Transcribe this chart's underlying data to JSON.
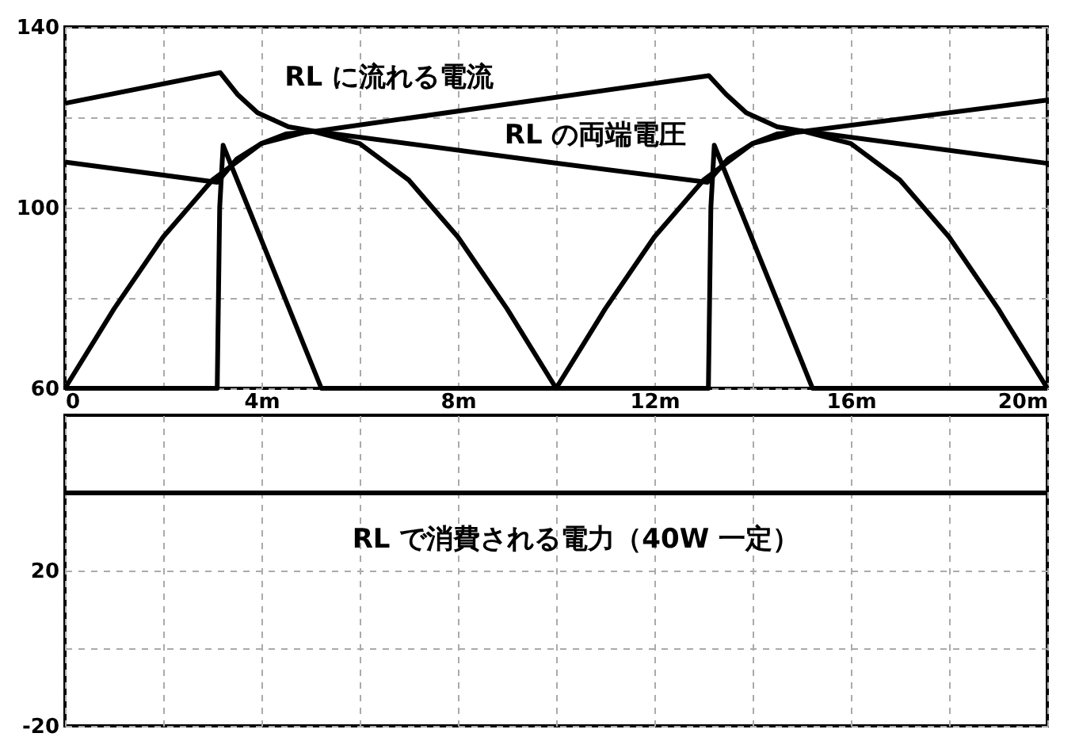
{
  "chart_data": [
    {
      "type": "line",
      "xlim": [
        0,
        20
      ],
      "xticks": [
        0,
        {
          "value": 2,
          "label": null
        },
        {
          "value": 4,
          "label": "4m"
        },
        {
          "value": 6,
          "label": null
        },
        {
          "value": 8,
          "label": "8m"
        },
        {
          "value": 10,
          "label": null
        },
        {
          "value": 12,
          "label": "12m"
        },
        {
          "value": 14,
          "label": null
        },
        {
          "value": 16,
          "label": "16m"
        },
        {
          "value": 18,
          "label": null
        },
        {
          "value": 20,
          "label": "20m"
        }
      ],
      "ylim": [
        60,
        140
      ],
      "yticks": [
        60,
        {
          "value": 80,
          "label": null
        },
        100,
        {
          "value": 120,
          "label": null
        },
        140
      ],
      "grid": true,
      "line_style": "solid",
      "marker": "none",
      "annotations": [
        "RL に流れる電流",
        "RL の両端電圧"
      ],
      "series": [
        {
          "color": "#000000",
          "x": [
            0,
            1,
            2,
            3,
            4,
            5,
            6,
            7,
            8,
            9,
            10,
            11,
            12,
            13,
            14,
            15,
            16,
            17,
            18,
            19,
            20
          ],
          "values": [
            60,
            77.6,
            93.5,
            106.1,
            114.2,
            117,
            114.2,
            106.1,
            93.5,
            77.6,
            60,
            77.6,
            93.5,
            106.1,
            114.2,
            117,
            114.2,
            106.1,
            93.5,
            77.6,
            60
          ]
        },
        {
          "color": "#000000",
          "x": [
            0,
            3.1,
            3.15,
            3.22,
            5.22,
            13.1,
            13.15,
            13.22,
            15.22,
            20
          ],
          "values": [
            60,
            60,
            100,
            113.8,
            60,
            60,
            100,
            113.8,
            60,
            60
          ]
        },
        {
          "color": "#000000",
          "x": [
            0,
            3.16,
            3.51,
            3.92,
            4.55,
            5.09,
            13.11,
            13.46,
            13.87,
            14.5,
            15.04,
            20
          ],
          "values": [
            123.1,
            129.9,
            125.1,
            121.0,
            117.9,
            116.9,
            129.2,
            125.1,
            121.0,
            117.9,
            116.9,
            123.8
          ]
        },
        {
          "color": "#000000",
          "x": [
            0,
            3.1,
            3.5,
            4,
            4.5,
            5.09,
            9.83,
            13.08,
            13.5,
            14,
            14.5,
            15.09,
            20
          ],
          "values": [
            110.1,
            105.6,
            110.8,
            114.2,
            116.3,
            116.9,
            110.1,
            105.6,
            110.8,
            114.2,
            116.3,
            116.9,
            109.8
          ]
        }
      ]
    },
    {
      "type": "line",
      "xlim": [
        0,
        20
      ],
      "xticks": [
        {
          "value": 0,
          "label": null
        },
        {
          "value": 2,
          "label": null
        },
        {
          "value": 4,
          "label": null
        },
        {
          "value": 6,
          "label": null
        },
        {
          "value": 8,
          "label": null
        },
        {
          "value": 10,
          "label": null
        },
        {
          "value": 12,
          "label": null
        },
        {
          "value": 14,
          "label": null
        },
        {
          "value": 16,
          "label": null
        },
        {
          "value": 18,
          "label": null
        },
        {
          "value": 20,
          "label": null
        }
      ],
      "ylim": [
        -20,
        60
      ],
      "yticks": [
        -20,
        {
          "value": 0,
          "label": null
        },
        20,
        {
          "value": 40,
          "label": null
        }
      ],
      "grid": true,
      "line_style": "solid",
      "marker": "none",
      "tick_labels": "y",
      "annotations": [
        "RL で消費される電力（40W 一定）"
      ],
      "series": [
        {
          "color": "#000000",
          "x": [
            0,
            20
          ],
          "values": [
            40,
            40
          ]
        }
      ]
    }
  ]
}
